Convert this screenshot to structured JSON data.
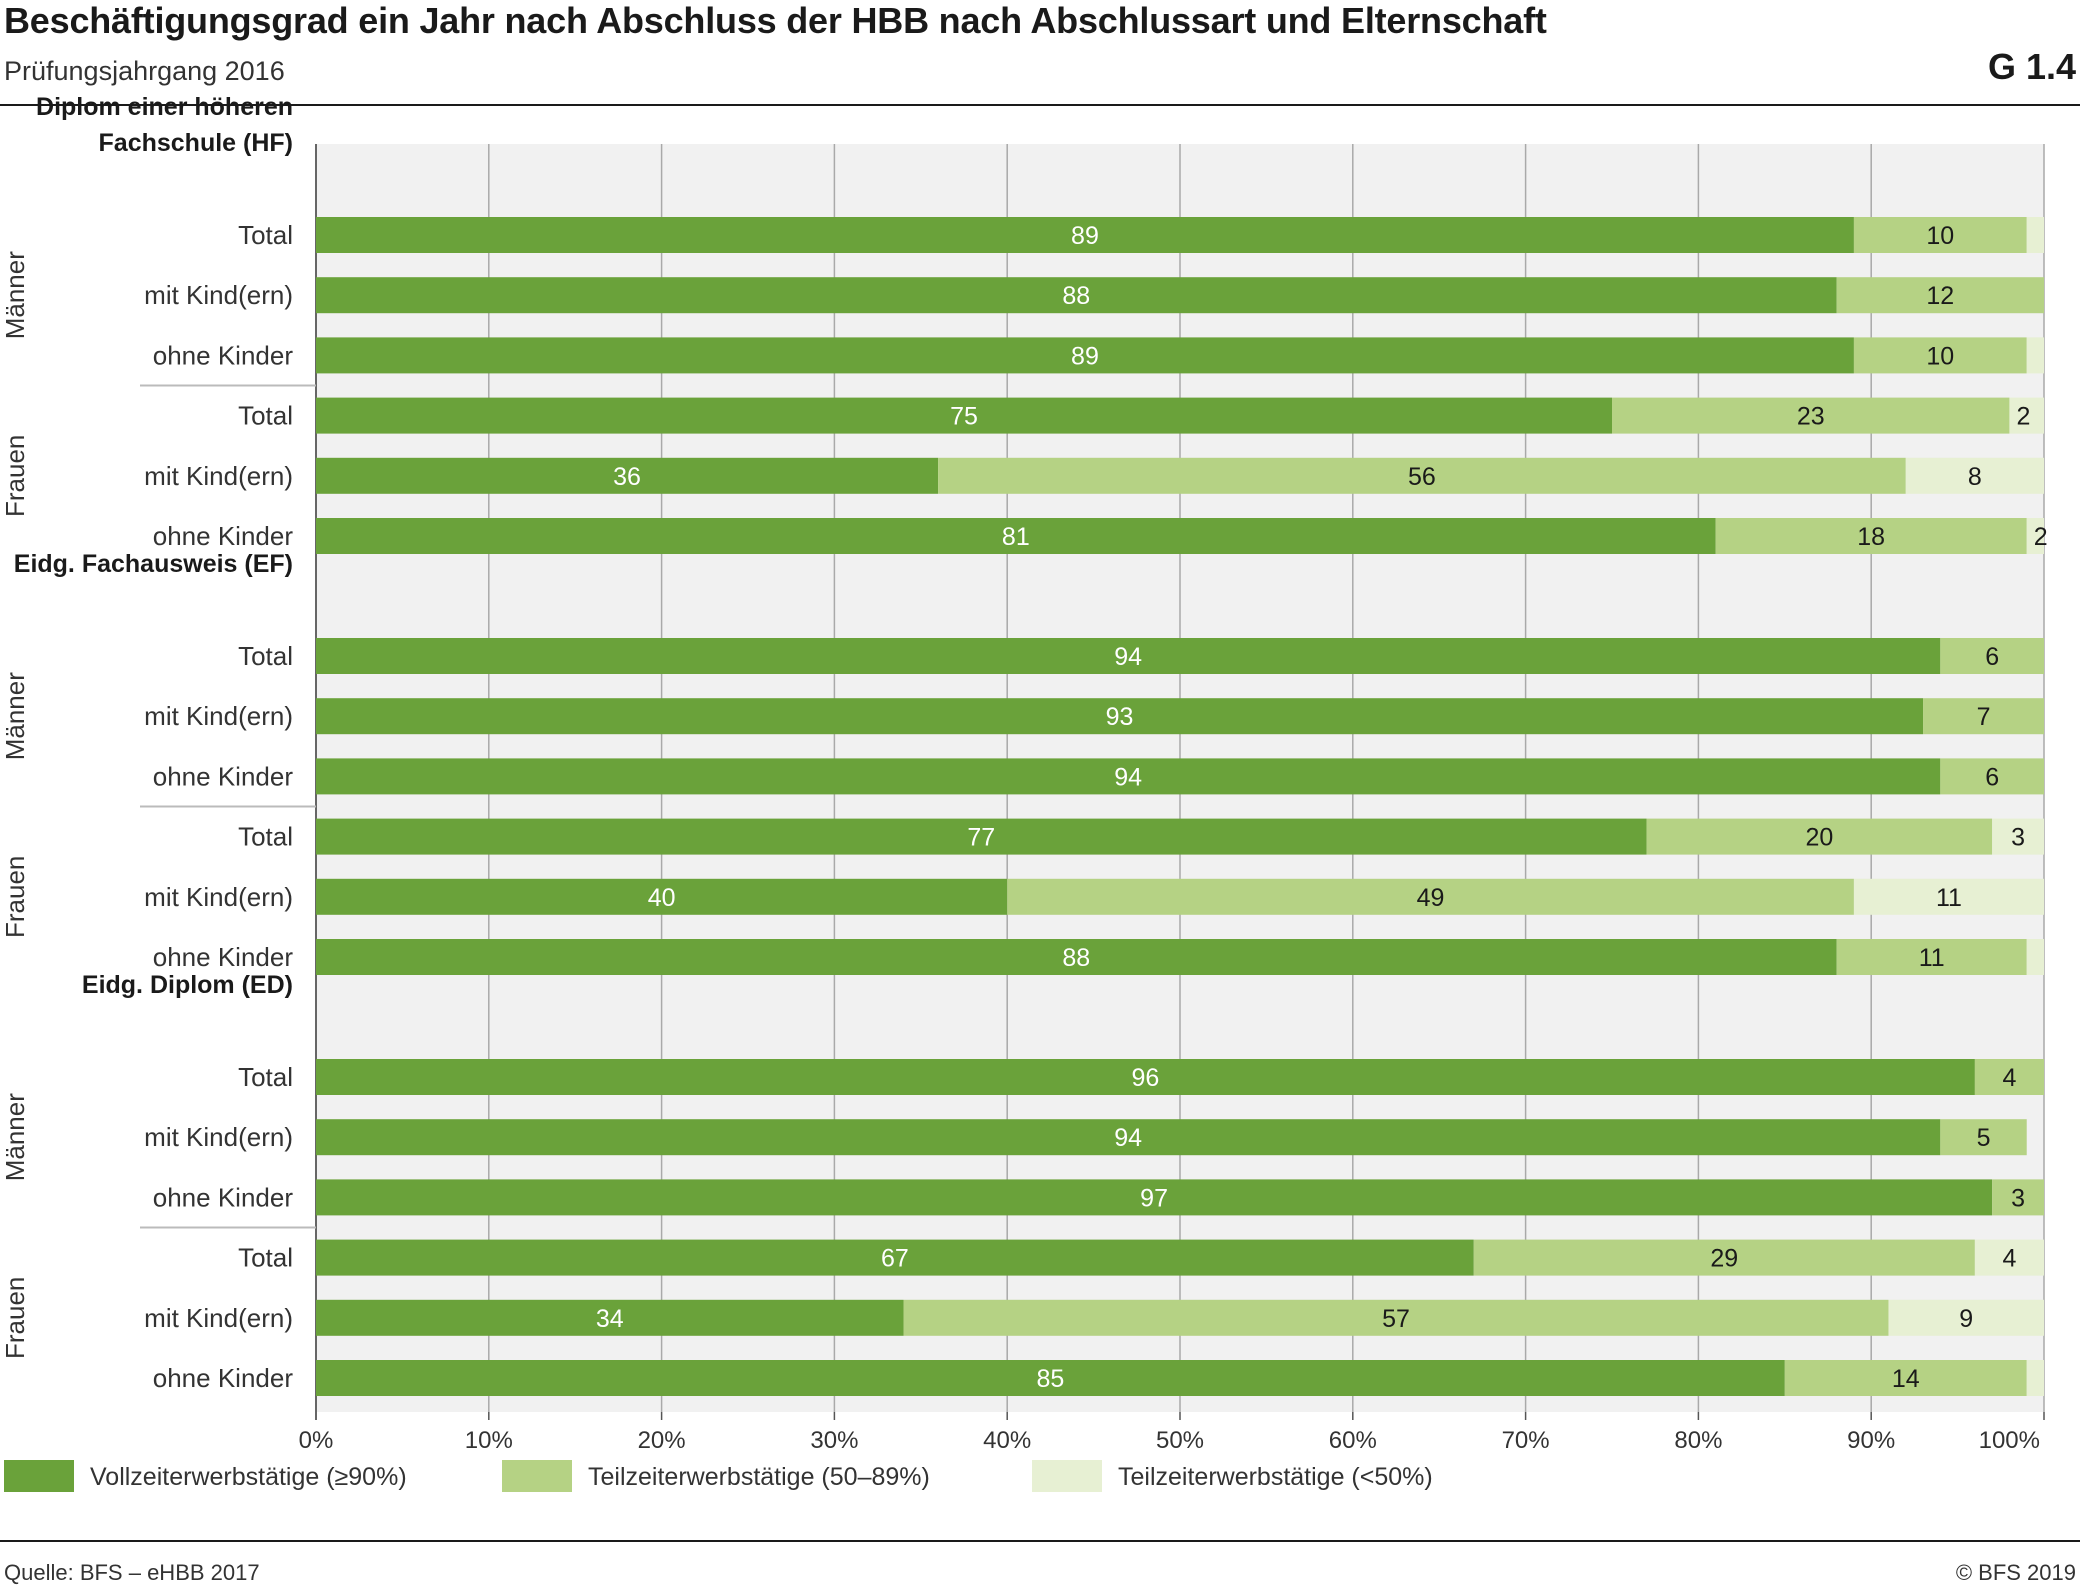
{
  "header": {
    "title": "Beschäftigungsgrad ein Jahr nach Abschluss der HBB nach Abschlussart und Elternschaft",
    "subtitle": "Prüfungsjahrgang 2016",
    "code": "G 1.4"
  },
  "footer": {
    "source": "Quelle: BFS – eHBB 2017",
    "copyright": "© BFS 2019"
  },
  "colors": {
    "full": "#6aa23a",
    "part": "#b5d284",
    "low": "#e7f0d3",
    "plot_bg": "#f1f1f1",
    "grid": "#a9a9a9"
  },
  "chart_data": {
    "type": "bar",
    "orientation": "horizontal",
    "stacked": true,
    "title": "Beschäftigungsgrad ein Jahr nach Abschluss der HBB nach Abschlussart und Elternschaft",
    "subtitle": "Prüfungsjahrgang 2016",
    "xlim": [
      0,
      100
    ],
    "x_ticks": [
      "0%",
      "10%",
      "20%",
      "30%",
      "40%",
      "50%",
      "60%",
      "70%",
      "80%",
      "90%",
      "100%"
    ],
    "grid": true,
    "legend_position": "bottom",
    "series": [
      {
        "name": "Vollzeiterwerbstätige (≥90%)",
        "color": "#6aa23a"
      },
      {
        "name": "Teilzeiterwerbstätige (50–89%)",
        "color": "#b5d284"
      },
      {
        "name": "Teilzeiterwerbstätige (<50%)",
        "color": "#e7f0d3"
      }
    ],
    "groups": [
      {
        "title_lines": [
          "Diplom einer höheren",
          "Fachschule (HF)"
        ],
        "subgroups": [
          {
            "label": "Männer",
            "rows": [
              {
                "label": "Total",
                "values": [
                  89,
                  10,
                  1
                ],
                "labels": [
                  "89",
                  "10",
                  ""
                ]
              },
              {
                "label": "mit Kind(ern)",
                "values": [
                  88,
                  12,
                  0
                ],
                "labels": [
                  "88",
                  "12",
                  ""
                ]
              },
              {
                "label": "ohne Kinder",
                "values": [
                  89,
                  10,
                  1
                ],
                "labels": [
                  "89",
                  "10",
                  ""
                ]
              }
            ]
          },
          {
            "label": "Frauen",
            "rows": [
              {
                "label": "Total",
                "values": [
                  75,
                  23,
                  2
                ],
                "labels": [
                  "75",
                  "23",
                  "2"
                ]
              },
              {
                "label": "mit Kind(ern)",
                "values": [
                  36,
                  56,
                  8
                ],
                "labels": [
                  "36",
                  "56",
                  "8"
                ]
              },
              {
                "label": "ohne Kinder",
                "values": [
                  81,
                  18,
                  2
                ],
                "labels": [
                  "81",
                  "18",
                  "2"
                ]
              }
            ]
          }
        ]
      },
      {
        "title_lines": [
          "Eidg. Fachausweis (EF)"
        ],
        "subgroups": [
          {
            "label": "Männer",
            "rows": [
              {
                "label": "Total",
                "values": [
                  94,
                  6,
                  0
                ],
                "labels": [
                  "94",
                  "6",
                  ""
                ]
              },
              {
                "label": "mit Kind(ern)",
                "values": [
                  93,
                  7,
                  0
                ],
                "labels": [
                  "93",
                  "7",
                  ""
                ]
              },
              {
                "label": "ohne Kinder",
                "values": [
                  94,
                  6,
                  0
                ],
                "labels": [
                  "94",
                  "6",
                  ""
                ]
              }
            ]
          },
          {
            "label": "Frauen",
            "rows": [
              {
                "label": "Total",
                "values": [
                  77,
                  20,
                  3
                ],
                "labels": [
                  "77",
                  "20",
                  "3"
                ]
              },
              {
                "label": "mit Kind(ern)",
                "values": [
                  40,
                  49,
                  11
                ],
                "labels": [
                  "40",
                  "49",
                  "11"
                ]
              },
              {
                "label": "ohne Kinder",
                "values": [
                  88,
                  11,
                  1
                ],
                "labels": [
                  "88",
                  "11",
                  ""
                ]
              }
            ]
          }
        ]
      },
      {
        "title_lines": [
          "Eidg. Diplom (ED)"
        ],
        "subgroups": [
          {
            "label": "Männer",
            "rows": [
              {
                "label": "Total",
                "values": [
                  96,
                  4,
                  0
                ],
                "labels": [
                  "96",
                  "4",
                  ""
                ]
              },
              {
                "label": "mit Kind(ern)",
                "values": [
                  94,
                  5,
                  0
                ],
                "labels": [
                  "94",
                  "5",
                  ""
                ]
              },
              {
                "label": "ohne Kinder",
                "values": [
                  97,
                  3,
                  0
                ],
                "labels": [
                  "97",
                  "3",
                  ""
                ]
              }
            ]
          },
          {
            "label": "Frauen",
            "rows": [
              {
                "label": "Total",
                "values": [
                  67,
                  29,
                  4
                ],
                "labels": [
                  "67",
                  "29",
                  "4"
                ]
              },
              {
                "label": "mit Kind(ern)",
                "values": [
                  34,
                  57,
                  9
                ],
                "labels": [
                  "34",
                  "57",
                  "9"
                ]
              },
              {
                "label": "ohne Kinder",
                "values": [
                  85,
                  14,
                  1
                ],
                "labels": [
                  "85",
                  "14",
                  ""
                ]
              }
            ]
          }
        ]
      }
    ]
  }
}
